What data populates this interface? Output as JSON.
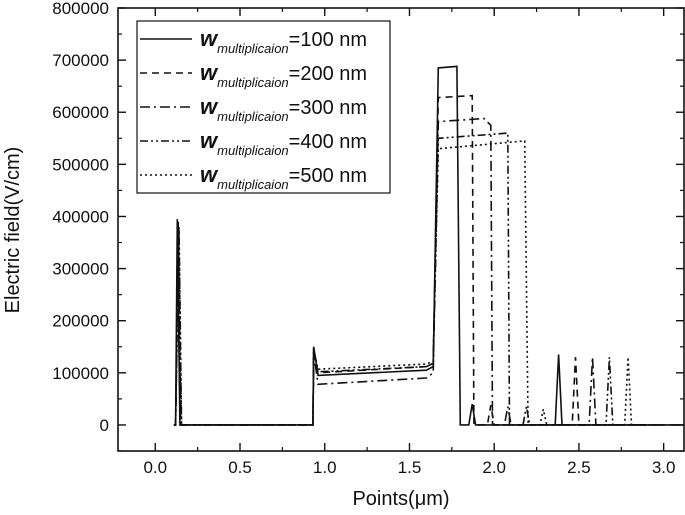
{
  "chart_data": {
    "type": "line",
    "xlabel": "Points(μm)",
    "ylabel": "Electric field(V/cm)",
    "xlim": [
      -0.22,
      3.12
    ],
    "ylim": [
      -50000,
      800000
    ],
    "xticks": [
      0.0,
      0.5,
      1.0,
      1.5,
      2.0,
      2.5,
      3.0
    ],
    "xtick_labels": [
      "0.0",
      "0.5",
      "1.0",
      "1.5",
      "2.0",
      "2.5",
      "3.0"
    ],
    "yticks": [
      0,
      100000,
      200000,
      300000,
      400000,
      500000,
      600000,
      700000,
      800000
    ],
    "ytick_labels": [
      "0",
      "100000",
      "200000",
      "300000",
      "400000",
      "500000",
      "600000",
      "700000",
      "800000"
    ],
    "grid": false,
    "legend_position": "top-left",
    "legend_symbol": "w",
    "legend_subscript": "multiplicaion",
    "series": [
      {
        "name": "=100 nm",
        "dash": "solid",
        "x": [
          0.11,
          0.12,
          0.13,
          0.145,
          0.16,
          0.93,
          0.935,
          0.96,
          1.6,
          1.64,
          1.67,
          1.78,
          1.8,
          1.85,
          1.87,
          1.89,
          2.36,
          2.38,
          2.4,
          3.12
        ],
        "y": [
          0,
          0,
          395000,
          0,
          0,
          0,
          150000,
          95000,
          105000,
          112000,
          685000,
          688000,
          0,
          0,
          40000,
          0,
          0,
          135000,
          0,
          0
        ]
      },
      {
        "name": "=200 nm",
        "dash": "dashed",
        "x": [
          0.11,
          0.12,
          0.135,
          0.15,
          0.16,
          0.93,
          0.935,
          0.96,
          1.6,
          1.64,
          1.67,
          1.87,
          1.88,
          1.96,
          1.98,
          2.0,
          2.46,
          2.48,
          2.5,
          2.9
        ],
        "y": [
          0,
          0,
          390000,
          0,
          0,
          0,
          148000,
          100000,
          112000,
          118000,
          628000,
          632000,
          0,
          0,
          38000,
          0,
          0,
          130000,
          0,
          0
        ]
      },
      {
        "name": "=300 nm",
        "dash": "dash-dot",
        "x": [
          0.11,
          0.12,
          0.135,
          0.15,
          0.16,
          0.93,
          0.935,
          0.96,
          1.6,
          1.64,
          1.67,
          1.94,
          1.98,
          1.99,
          2.06,
          2.08,
          2.1,
          2.56,
          2.58,
          2.6,
          3.12
        ],
        "y": [
          0,
          0,
          385000,
          0,
          0,
          0,
          140000,
          78000,
          90000,
          100000,
          582000,
          588000,
          575000,
          0,
          0,
          35000,
          0,
          0,
          130000,
          0,
          0
        ]
      },
      {
        "name": "=400 nm",
        "dash": "dash-dot-dot",
        "x": [
          0.11,
          0.12,
          0.14,
          0.155,
          0.16,
          0.93,
          0.935,
          0.96,
          1.6,
          1.64,
          1.67,
          2.08,
          2.09,
          2.17,
          2.19,
          2.21,
          2.66,
          2.68,
          2.7,
          3.0
        ],
        "y": [
          0,
          0,
          380000,
          0,
          0,
          0,
          145000,
          102000,
          112000,
          118000,
          550000,
          560000,
          0,
          0,
          35000,
          0,
          0,
          130000,
          0,
          0
        ]
      },
      {
        "name": "=500 nm",
        "dash": "dotted",
        "x": [
          0.11,
          0.12,
          0.14,
          0.155,
          0.16,
          0.93,
          0.935,
          0.96,
          1.6,
          1.64,
          1.67,
          2.18,
          2.2,
          2.27,
          2.29,
          2.31,
          2.77,
          2.79,
          2.81,
          2.9
        ],
        "y": [
          0,
          0,
          375000,
          0,
          0,
          0,
          145000,
          107000,
          117000,
          122000,
          530000,
          545000,
          0,
          0,
          30000,
          0,
          0,
          130000,
          0,
          0
        ]
      }
    ]
  }
}
